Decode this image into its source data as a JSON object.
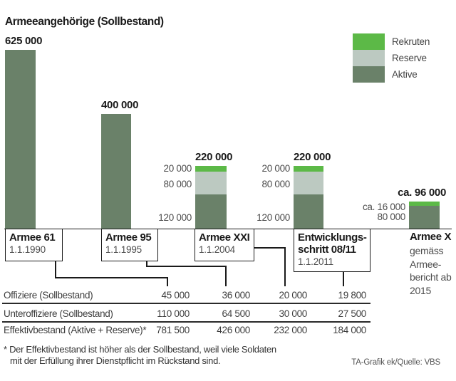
{
  "title": "Armeeangehörige (Sollbestand)",
  "colors": {
    "rekruten": "#5cb947",
    "reserve": "#bcc9c1",
    "aktive": "#6a8169",
    "line": "#1a1a1a"
  },
  "legend": [
    {
      "name": "Rekruten",
      "color": "#5cb947"
    },
    {
      "name": "Reserve",
      "color": "#bcc9c1"
    },
    {
      "name": "Aktive",
      "color": "#6a8169"
    }
  ],
  "chart_data": {
    "type": "bar",
    "stacked": true,
    "title": "Armeeangehörige (Sollbestand)",
    "ylim": [
      0,
      625000
    ],
    "legend_position": "top-right",
    "categories": [
      "Armee 61",
      "Armee 95",
      "Armee XXI",
      "Entwicklungsschritt 08/11",
      "Armee X"
    ],
    "bars": [
      {
        "name": "Armee 61",
        "name_lines": [
          "Armee 61"
        ],
        "date": "1.1.1990",
        "total": 625000,
        "total_label": "625 000",
        "segments": [
          {
            "series": "Aktive",
            "value": 625000,
            "label": ""
          }
        ]
      },
      {
        "name": "Armee 95",
        "name_lines": [
          "Armee 95"
        ],
        "date": "1.1.1995",
        "total": 400000,
        "total_label": "400 000",
        "segments": [
          {
            "series": "Aktive",
            "value": 400000,
            "label": ""
          }
        ]
      },
      {
        "name": "Armee XXI",
        "name_lines": [
          "Armee XXI"
        ],
        "date": "1.1.2004",
        "total": 220000,
        "total_label": "220 000",
        "segments": [
          {
            "series": "Rekruten",
            "value": 20000,
            "label": "20 000"
          },
          {
            "series": "Reserve",
            "value": 80000,
            "label": "80 000"
          },
          {
            "series": "Aktive",
            "value": 120000,
            "label": "120 000"
          }
        ]
      },
      {
        "name": "Entwicklungsschritt 08/11",
        "name_lines": [
          "Entwicklungs-",
          "schritt 08/11"
        ],
        "date": "1.1.2011",
        "total": 220000,
        "total_label": "220 000",
        "segments": [
          {
            "series": "Rekruten",
            "value": 20000,
            "label": "20 000"
          },
          {
            "series": "Reserve",
            "value": 80000,
            "label": "80 000"
          },
          {
            "series": "Aktive",
            "value": 120000,
            "label": "120 000"
          }
        ]
      },
      {
        "name": "Armee X",
        "name_lines": [
          "Armee X"
        ],
        "date_lines": [
          "gemäss",
          "Armee-",
          "bericht ab",
          "2015"
        ],
        "total": 96000,
        "total_label": "ca. 96 000",
        "segments": [
          {
            "series": "Rekruten",
            "value": 16000,
            "label": "ca. 16 000"
          },
          {
            "series": "Aktive",
            "value": 80000,
            "label": "80 000"
          }
        ]
      }
    ],
    "table": {
      "rows": [
        {
          "label": "Offiziere (Sollbestand)",
          "values": [
            "45 000",
            "36 000",
            "20 000",
            "19 800"
          ]
        },
        {
          "label": "Unteroffiziere (Sollbestand)",
          "values": [
            "110 000",
            "64 500",
            "30 000",
            "27 500"
          ]
        },
        {
          "label": "Effektivbestand (Aktive + Reserve)*",
          "values": [
            "781 500",
            "426 000",
            "232 000",
            "184 000"
          ]
        }
      ]
    }
  },
  "footnote": {
    "line1": "* Der Effektivbestand ist höher als der Sollbestand, weil viele Soldaten",
    "line2": "mit der Erfüllung ihrer Dienstpflicht im Rückstand sind."
  },
  "credit": "TA-Grafik ek/Quelle: VBS"
}
